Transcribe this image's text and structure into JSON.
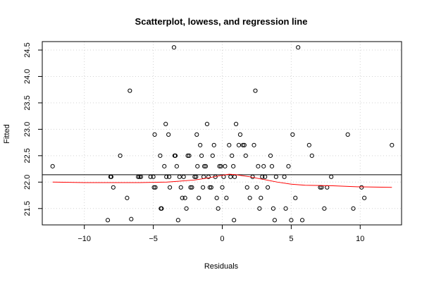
{
  "chart_data": {
    "type": "scatter",
    "title": "Scatterplot, lowess, and regression line",
    "xlabel": "Residuals",
    "ylabel": "Fitted",
    "xlim": [
      -13.05,
      13.0
    ],
    "ylim": [
      21.19,
      24.66
    ],
    "xticks": [
      -10,
      -5,
      0,
      5,
      10
    ],
    "xtick_labels": [
      "−10",
      "−5",
      "0",
      "5",
      "10"
    ],
    "yticks": [
      21.5,
      22.0,
      22.5,
      23.0,
      23.5,
      24.0,
      24.5
    ],
    "ytick_labels": [
      "21.5",
      "22.0",
      "22.5",
      "23.0",
      "23.5",
      "24.0",
      "24.5"
    ],
    "grid": true,
    "colors": {
      "points": "#000000",
      "lowess": "#ff0000",
      "regression": "#000000",
      "grid": "#d3d3d3"
    },
    "regression_line": {
      "intercept": 22.14,
      "slope": 0
    },
    "lowess": {
      "x": [
        -12.3,
        -10,
        -8,
        -6,
        -4,
        -2,
        -1,
        0,
        0.5,
        1,
        2,
        3,
        4,
        5,
        6,
        8,
        10,
        12.3
      ],
      "y": [
        22.0,
        21.99,
        21.99,
        21.99,
        22.0,
        22.04,
        22.08,
        22.13,
        22.15,
        22.14,
        22.1,
        22.05,
        22.0,
        21.96,
        21.94,
        21.93,
        21.91,
        21.9
      ]
    },
    "points": {
      "x": [
        -12.3,
        -8.3,
        -8.1,
        -8.05,
        -7.9,
        -7.4,
        -6.9,
        -6.7,
        -6.6,
        -6.1,
        -6.0,
        -5.9,
        -5.2,
        -5.0,
        -4.95,
        -4.9,
        -4.85,
        -4.5,
        -4.45,
        -4.4,
        -4.2,
        -4.1,
        -4.05,
        -3.9,
        -3.85,
        -3.8,
        -3.5,
        -3.45,
        -3.4,
        -3.3,
        -3.2,
        -3.1,
        -3.0,
        -2.9,
        -2.8,
        -2.7,
        -2.6,
        -2.5,
        -2.4,
        -2.3,
        -2.2,
        -2.0,
        -1.9,
        -1.85,
        -1.8,
        -1.7,
        -1.6,
        -1.5,
        -1.4,
        -1.35,
        -1.3,
        -1.2,
        -1.1,
        -1.0,
        -0.9,
        -0.8,
        -0.7,
        -0.6,
        -0.5,
        -0.4,
        -0.3,
        -0.2,
        -0.1,
        0.0,
        0.1,
        0.2,
        0.3,
        0.5,
        0.6,
        0.7,
        0.8,
        0.85,
        0.9,
        1.0,
        1.2,
        1.3,
        1.5,
        1.6,
        1.7,
        1.8,
        2.0,
        2.2,
        2.3,
        2.4,
        2.5,
        2.6,
        2.7,
        2.8,
        2.9,
        3.0,
        3.1,
        3.3,
        3.5,
        3.6,
        3.7,
        3.8,
        3.9,
        4.5,
        4.6,
        4.8,
        5.0,
        5.1,
        5.3,
        5.5,
        5.8,
        6.3,
        6.5,
        7.1,
        7.2,
        7.4,
        7.6,
        7.9,
        9.1,
        9.5,
        10.1,
        10.3,
        12.3
      ],
      "y": [
        22.3,
        21.28,
        22.1,
        22.1,
        21.9,
        22.5,
        21.7,
        23.73,
        21.3,
        22.1,
        22.1,
        22.1,
        22.1,
        22.1,
        21.9,
        22.9,
        21.9,
        22.5,
        21.5,
        21.5,
        22.3,
        23.1,
        22.1,
        22.9,
        22.1,
        21.9,
        24.55,
        22.5,
        22.5,
        22.3,
        21.28,
        22.1,
        21.9,
        21.7,
        22.1,
        21.7,
        21.5,
        22.5,
        22.5,
        21.9,
        21.9,
        22.1,
        22.1,
        22.9,
        22.3,
        21.7,
        22.7,
        22.5,
        21.9,
        22.1,
        22.3,
        22.3,
        23.1,
        22.1,
        21.9,
        21.9,
        22.5,
        22.7,
        22.1,
        21.7,
        21.5,
        22.3,
        22.3,
        21.9,
        22.1,
        22.3,
        21.7,
        22.7,
        22.1,
        22.5,
        22.3,
        21.28,
        22.1,
        23.1,
        22.7,
        22.9,
        22.7,
        22.7,
        22.5,
        21.9,
        21.7,
        22.1,
        22.7,
        23.73,
        21.9,
        22.3,
        21.5,
        21.7,
        22.1,
        22.3,
        22.1,
        21.9,
        22.5,
        22.3,
        21.5,
        21.28,
        22.1,
        22.1,
        21.5,
        22.3,
        21.28,
        22.9,
        21.7,
        24.55,
        21.28,
        22.7,
        22.5,
        21.9,
        21.9,
        21.5,
        21.9,
        22.1,
        22.9,
        21.5,
        21.9,
        21.7,
        22.7
      ]
    }
  }
}
